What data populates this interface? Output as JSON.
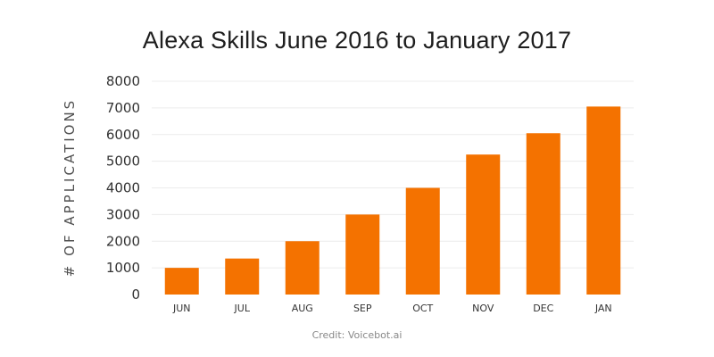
{
  "chart_data": {
    "type": "bar",
    "title": "Alexa Skills June 2016 to January 2017",
    "xlabel": "",
    "ylabel": "# OF APPLICATIONS",
    "categories": [
      "JUN",
      "JUL",
      "AUG",
      "SEP",
      "OCT",
      "NOV",
      "DEC",
      "JAN"
    ],
    "values": [
      1000,
      1350,
      2000,
      3000,
      4000,
      5250,
      6050,
      7050
    ],
    "ylim": [
      0,
      8000
    ],
    "yticks": [
      "0",
      "1000",
      "2000",
      "3000",
      "4000",
      "5000",
      "6000",
      "7000",
      "8000"
    ],
    "grid": true,
    "legend": "none",
    "bar_color": "#f47200",
    "credit": "Credit: Voicebot.ai"
  }
}
